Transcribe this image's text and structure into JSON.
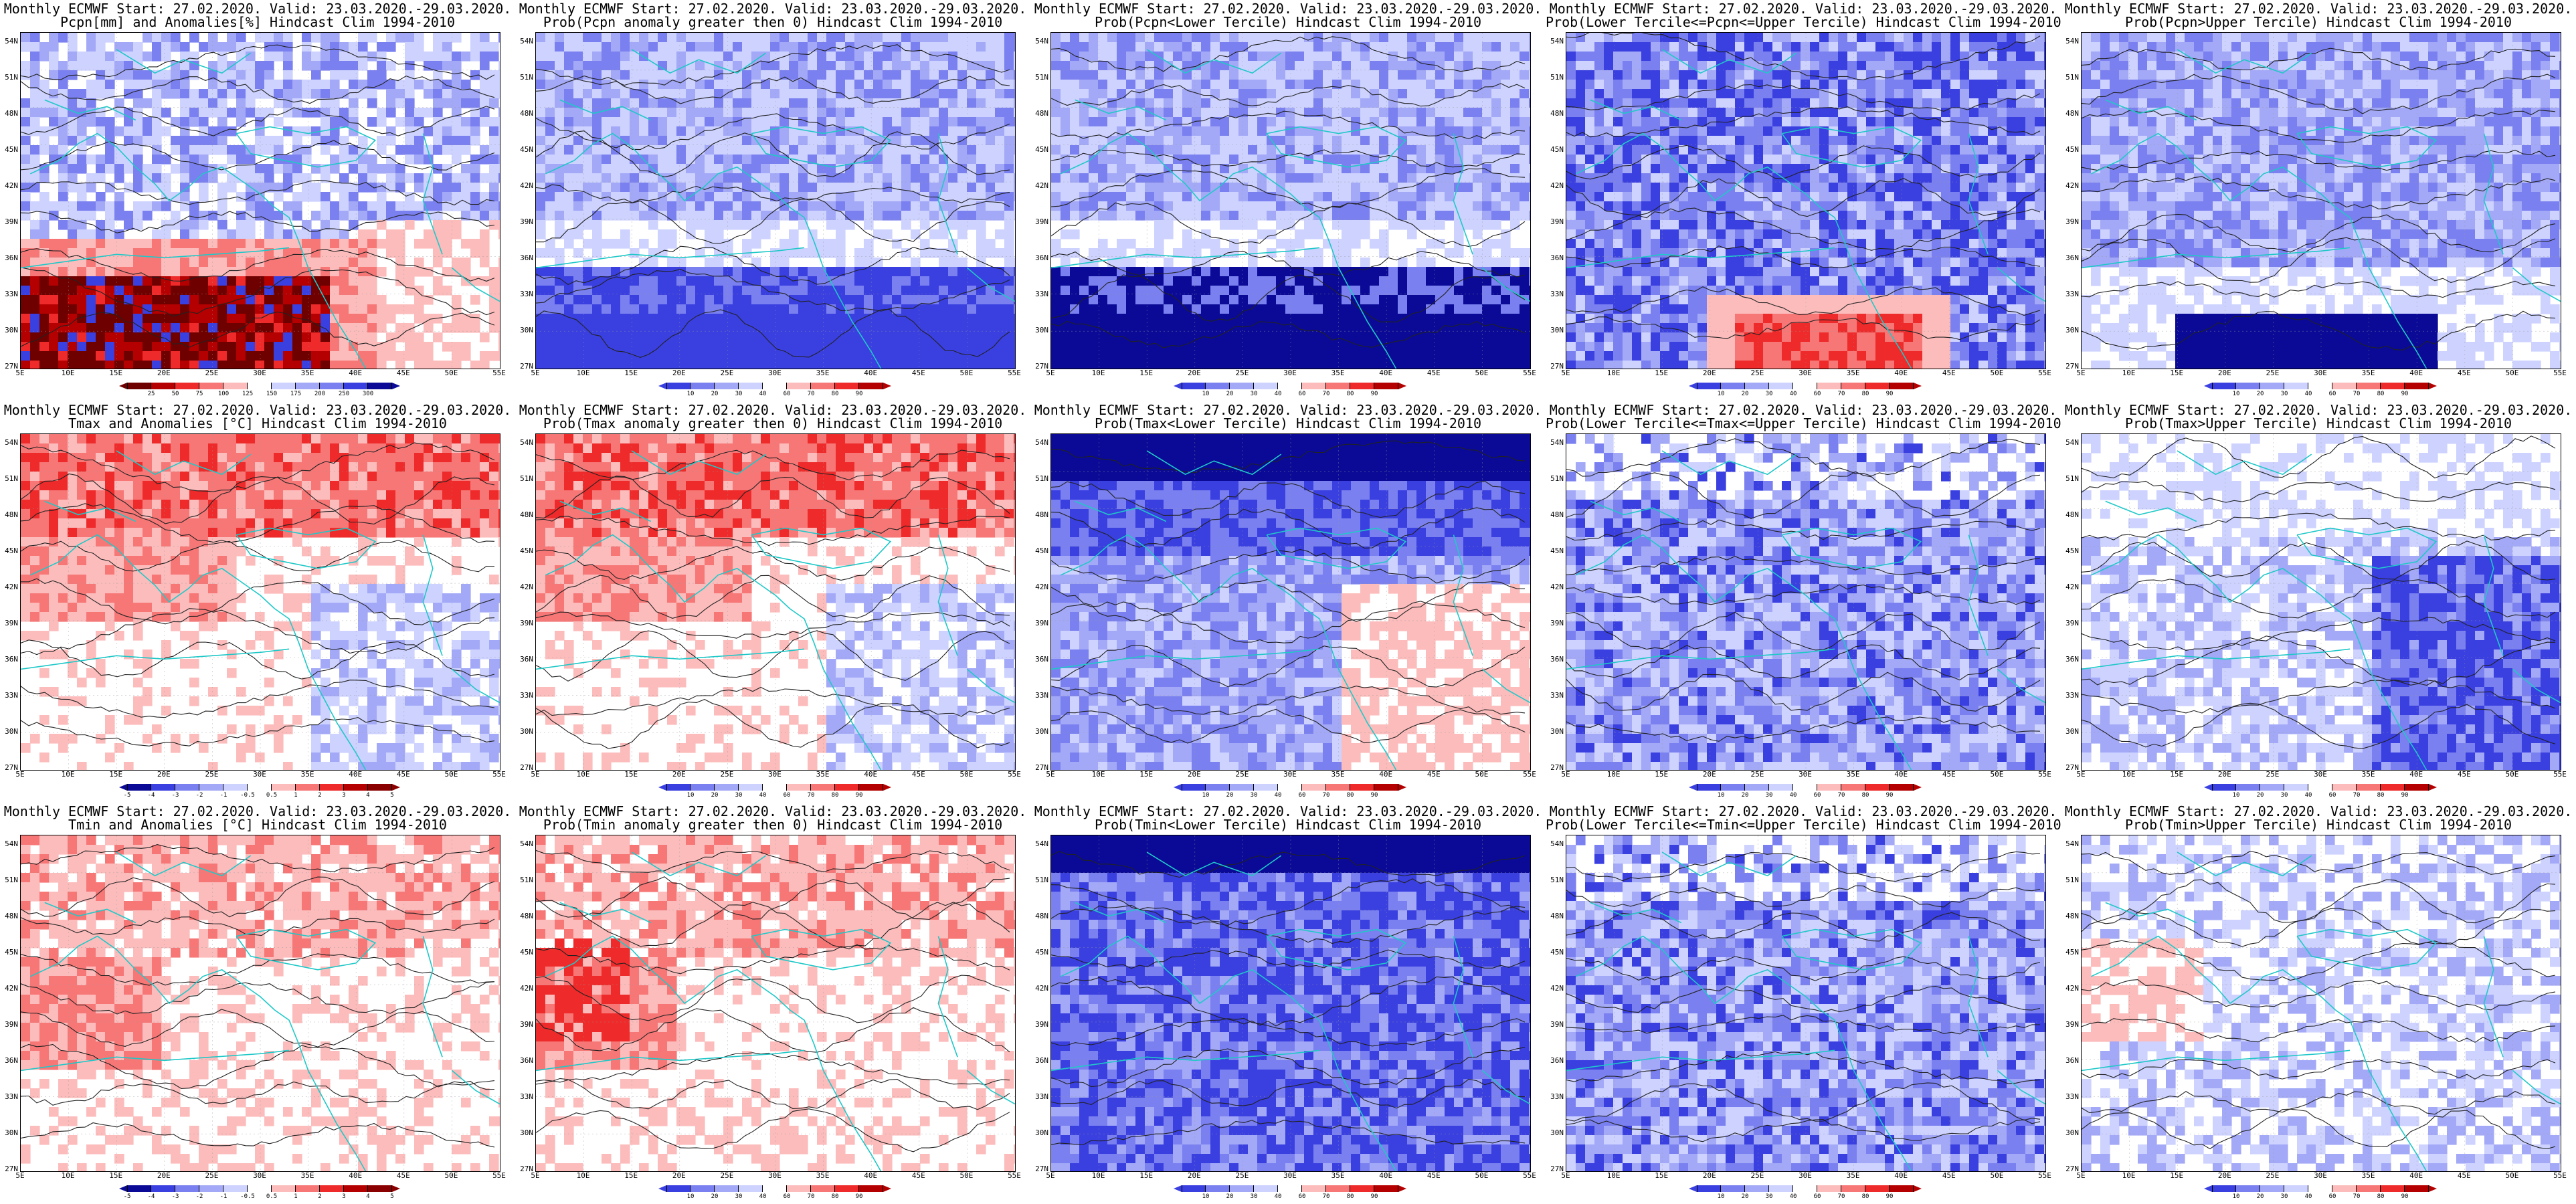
{
  "figure": {
    "common": {
      "lat_labels": [
        "54N",
        "51N",
        "48N",
        "45N",
        "42N",
        "39N",
        "36N",
        "33N",
        "30N",
        "27N"
      ],
      "lon_labels": [
        "5E",
        "10E",
        "15E",
        "20E",
        "25E",
        "30E",
        "35E",
        "40E",
        "45E",
        "50E",
        "55E"
      ]
    },
    "colors": {
      "dry": "#6e0000",
      "red_dark": "#b40000",
      "red": "#ee2a2a",
      "red_mid": "#f77777",
      "red_light": "#fcbcbc",
      "white": "#ffffff",
      "blue_light": "#cdd2ff",
      "blue_mid": "#a3a9f7",
      "blue": "#7a80ef",
      "blue_dark": "#3a3fe0",
      "navy": "#0a0a96",
      "coast": "#20c8c8",
      "contour": "#222222"
    },
    "rows": [
      {
        "variable": "precipitation",
        "panels": [
          {
            "name": "pcpn-anomaly",
            "title_line1": "Monthly ECMWF Start: 27.02.2020. Valid: 23.03.2020.-29.03.2020.",
            "title_line2": "Pcpn[mm] and Anomalies[%] Hindcast Clim 1994-2010",
            "scheme": "anomaly_pcpn",
            "colorbar": {
              "palette": "pcpn",
              "ticks": [
                "25",
                "50",
                "75",
                "100",
                "125",
                "150",
                "175",
                "200",
                "250",
                "300"
              ]
            }
          },
          {
            "name": "prob-pcpn-gt0",
            "title_line1": "Monthly ECMWF Start: 27.02.2020. Valid: 23.03.2020.-29.03.2020.",
            "title_line2": "Prob(Pcpn anomaly greater then 0) Hindcast Clim 1994-2010",
            "scheme": "prob_pcpn_gt0",
            "colorbar": {
              "palette": "prob",
              "ticks": [
                "10",
                "20",
                "30",
                "40",
                "60",
                "70",
                "80",
                "90"
              ]
            }
          },
          {
            "name": "prob-pcpn-lower",
            "title_line1": "Monthly ECMWF Start: 27.02.2020. Valid: 23.03.2020.-29.03.2020.",
            "title_line2": "Prob(Pcpn<Lower Tercile) Hindcast Clim 1994-2010",
            "scheme": "prob_pcpn_lower",
            "colorbar": {
              "palette": "prob",
              "ticks": [
                "10",
                "20",
                "30",
                "40",
                "60",
                "70",
                "80",
                "90"
              ]
            }
          },
          {
            "name": "prob-pcpn-middle",
            "title_line1": "Monthly ECMWF Start: 27.02.2020. Valid: 23.03.2020.-29.03.2020.",
            "title_line2": "Prob(Lower Tercile<=Pcpn<=Upper Tercile) Hindcast Clim 1994-2010",
            "scheme": "prob_pcpn_middle",
            "colorbar": {
              "palette": "prob",
              "ticks": [
                "10",
                "20",
                "30",
                "40",
                "60",
                "70",
                "80",
                "90"
              ]
            }
          },
          {
            "name": "prob-pcpn-upper",
            "title_line1": "Monthly ECMWF Start: 27.02.2020. Valid: 23.03.2020.-29.03.2020.",
            "title_line2": "Prob(Pcpn>Upper Tercile) Hindcast Clim 1994-2010",
            "scheme": "prob_pcpn_upper",
            "colorbar": {
              "palette": "prob",
              "ticks": [
                "10",
                "20",
                "30",
                "40",
                "60",
                "70",
                "80",
                "90"
              ]
            }
          }
        ]
      },
      {
        "variable": "tmax",
        "panels": [
          {
            "name": "tmax-anomaly",
            "title_line1": "Monthly ECMWF Start: 27.02.2020. Valid: 23.03.2020.-29.03.2020.",
            "title_line2": "Tmax and Anomalies [°C] Hindcast Clim 1994-2010",
            "scheme": "anomaly_tmax",
            "colorbar": {
              "palette": "temp",
              "ticks": [
                "-5",
                "-4",
                "-3",
                "-2",
                "-1",
                "-0.5",
                "0.5",
                "1",
                "2",
                "3",
                "4",
                "5"
              ]
            }
          },
          {
            "name": "prob-tmax-gt0",
            "title_line1": "Monthly ECMWF Start: 27.02.2020. Valid: 23.03.2020.-29.03.2020.",
            "title_line2": "Prob(Tmax anomaly greater then 0) Hindcast Clim 1994-2010",
            "scheme": "prob_tmax_gt0",
            "colorbar": {
              "palette": "prob",
              "ticks": [
                "10",
                "20",
                "30",
                "40",
                "60",
                "70",
                "80",
                "90"
              ]
            }
          },
          {
            "name": "prob-tmax-lower",
            "title_line1": "Monthly ECMWF Start: 27.02.2020. Valid: 23.03.2020.-29.03.2020.",
            "title_line2": "Prob(Tmax<Lower Tercile) Hindcast Clim 1994-2010",
            "scheme": "prob_tmax_lower",
            "colorbar": {
              "palette": "prob",
              "ticks": [
                "10",
                "20",
                "30",
                "40",
                "60",
                "70",
                "80",
                "90"
              ]
            }
          },
          {
            "name": "prob-tmax-middle",
            "title_line1": "Monthly ECMWF Start: 27.02.2020. Valid: 23.03.2020.-29.03.2020.",
            "title_line2": "Prob(Lower Tercile<=Tmax<=Upper Tercile) Hindcast Clim 1994-2010",
            "scheme": "prob_tmax_middle",
            "colorbar": {
              "palette": "prob",
              "ticks": [
                "10",
                "20",
                "30",
                "40",
                "60",
                "70",
                "80",
                "90"
              ]
            }
          },
          {
            "name": "prob-tmax-upper",
            "title_line1": "Monthly ECMWF Start: 27.02.2020. Valid: 23.03.2020.-29.03.2020.",
            "title_line2": "Prob(Tmax>Upper Tercile) Hindcast Clim 1994-2010",
            "scheme": "prob_tmax_upper",
            "colorbar": {
              "palette": "prob",
              "ticks": [
                "10",
                "20",
                "30",
                "40",
                "60",
                "70",
                "80",
                "90"
              ]
            }
          }
        ]
      },
      {
        "variable": "tmin",
        "panels": [
          {
            "name": "tmin-anomaly",
            "title_line1": "Monthly ECMWF Start: 27.02.2020. Valid: 23.03.2020.-29.03.2020.",
            "title_line2": "Tmin and Anomalies [°C] Hindcast Clim 1994-2010",
            "scheme": "anomaly_tmin",
            "colorbar": {
              "palette": "temp",
              "ticks": [
                "-5",
                "-4",
                "-3",
                "-2",
                "-1",
                "-0.5",
                "0.5",
                "1",
                "2",
                "3",
                "4",
                "5"
              ]
            }
          },
          {
            "name": "prob-tmin-gt0",
            "title_line1": "Monthly ECMWF Start: 27.02.2020. Valid: 23.03.2020.-29.03.2020.",
            "title_line2": "Prob(Tmin anomaly greater then 0) Hindcast Clim 1994-2010",
            "scheme": "prob_tmin_gt0",
            "colorbar": {
              "palette": "prob",
              "ticks": [
                "10",
                "20",
                "30",
                "40",
                "60",
                "70",
                "80",
                "90"
              ]
            }
          },
          {
            "name": "prob-tmin-lower",
            "title_line1": "Monthly ECMWF Start: 27.02.2020. Valid: 23.03.2020.-29.03.2020.",
            "title_line2": "Prob(Tmin<Lower Tercile) Hindcast Clim 1994-2010",
            "scheme": "prob_tmin_lower",
            "colorbar": {
              "palette": "prob",
              "ticks": [
                "10",
                "20",
                "30",
                "40",
                "60",
                "70",
                "80",
                "90"
              ]
            }
          },
          {
            "name": "prob-tmin-middle",
            "title_line1": "Monthly ECMWF Start: 27.02.2020. Valid: 23.03.2020.-29.03.2020.",
            "title_line2": "Prob(Lower Tercile<=Tmin<=Upper Tercile) Hindcast Clim 1994-2010",
            "scheme": "prob_tmin_middle",
            "colorbar": {
              "palette": "prob",
              "ticks": [
                "10",
                "20",
                "30",
                "40",
                "60",
                "70",
                "80",
                "90"
              ]
            }
          },
          {
            "name": "prob-tmin-upper",
            "title_line1": "Monthly ECMWF Start: 27.02.2020. Valid: 23.03.2020.-29.03.2020.",
            "title_line2": "Prob(Tmin>Upper Tercile) Hindcast Clim 1994-2010",
            "scheme": "prob_tmin_upper",
            "colorbar": {
              "palette": "prob",
              "ticks": [
                "10",
                "20",
                "30",
                "40",
                "60",
                "70",
                "80",
                "90"
              ]
            }
          }
        ]
      }
    ]
  }
}
